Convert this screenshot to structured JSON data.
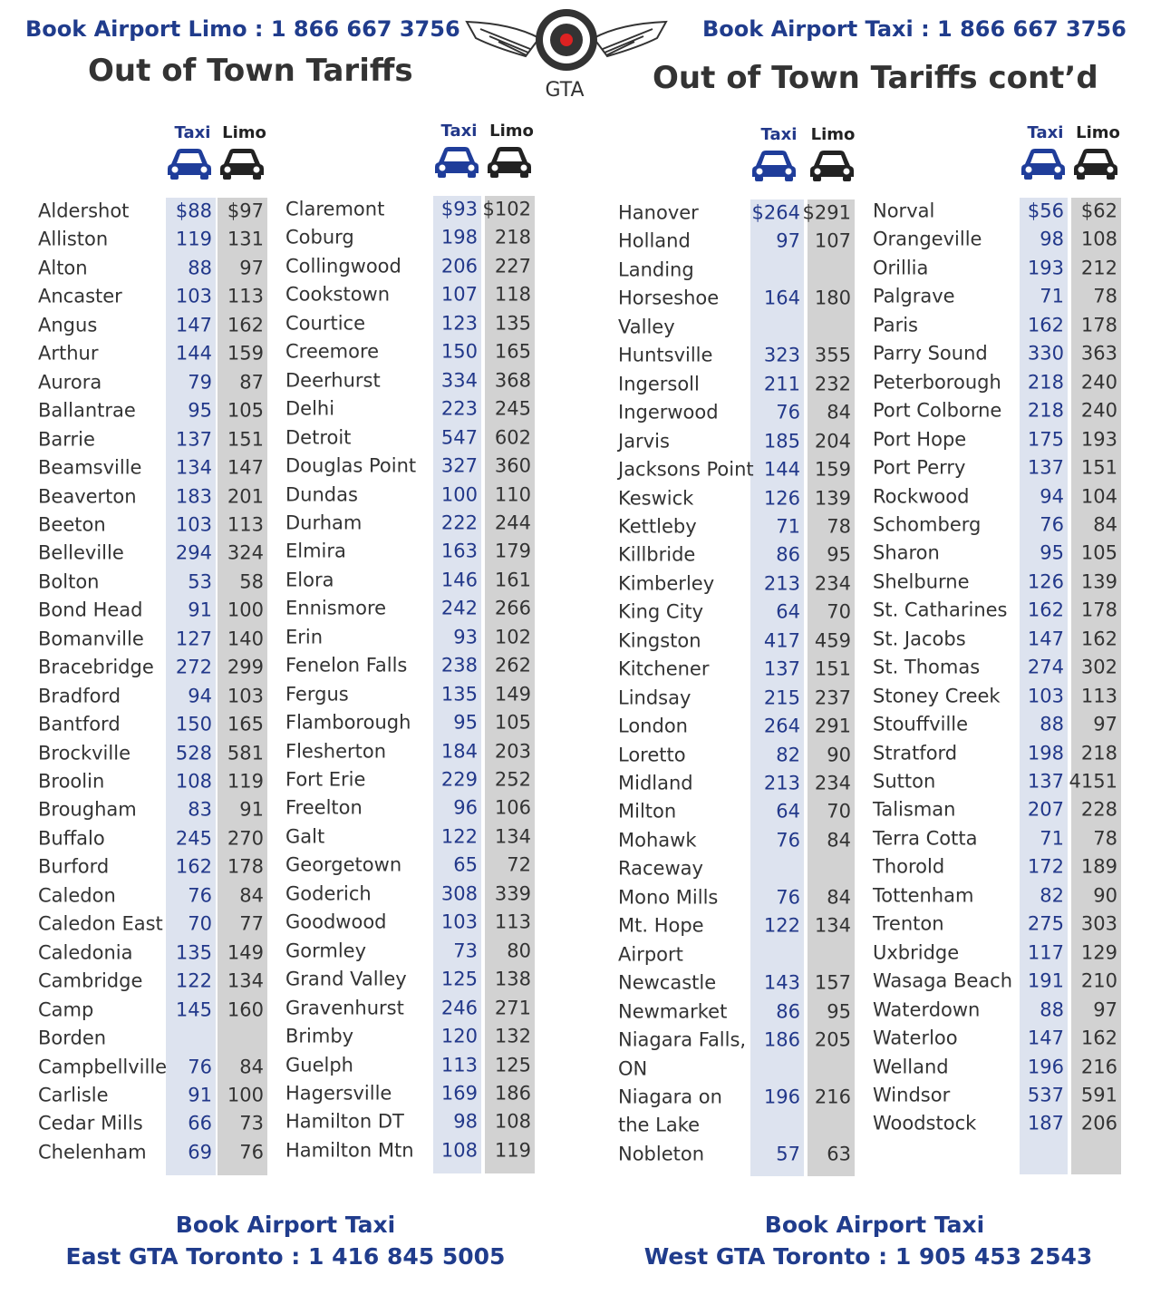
{
  "header": {
    "left_phone": "Book Airport Limo : 1 866 667 3756",
    "left_title": "Out of Town Tariffs",
    "logo": "GTA",
    "right_phone": "Book Airport Taxi : 1 866 667 3756",
    "right_title": "Out of Town Tariffs cont’d"
  },
  "columns": [
    {
      "taxi_header": "Taxi",
      "limo_header": "Limo",
      "rows": [
        [
          [
            "Aldershot"
          ],
          "$88",
          "$97"
        ],
        [
          [
            "Alliston"
          ],
          "119",
          "131"
        ],
        [
          [
            "Alton"
          ],
          "88",
          "97"
        ],
        [
          [
            "Ancaster"
          ],
          "103",
          "113"
        ],
        [
          [
            "Angus"
          ],
          "147",
          "162"
        ],
        [
          [
            "Arthur"
          ],
          "144",
          "159"
        ],
        [
          [
            "Aurora"
          ],
          "79",
          "87"
        ],
        [
          [
            "Ballantrae"
          ],
          "95",
          "105"
        ],
        [
          [
            "Barrie"
          ],
          "137",
          "151"
        ],
        [
          [
            "Beamsville"
          ],
          "134",
          "147"
        ],
        [
          [
            "Beaverton"
          ],
          "183",
          "201"
        ],
        [
          [
            "Beeton"
          ],
          "103",
          "113"
        ],
        [
          [
            "Belleville"
          ],
          "294",
          "324"
        ],
        [
          [
            "Bolton"
          ],
          "53",
          "58"
        ],
        [
          [
            "Bond Head"
          ],
          "91",
          "100"
        ],
        [
          [
            "Bomanville"
          ],
          "127",
          "140"
        ],
        [
          [
            "Bracebridge"
          ],
          "272",
          "299"
        ],
        [
          [
            "Bradford"
          ],
          "94",
          "103"
        ],
        [
          [
            "Bantford"
          ],
          "150",
          "165"
        ],
        [
          [
            "Brockville"
          ],
          "528",
          "581"
        ],
        [
          [
            "Broolin"
          ],
          "108",
          "119"
        ],
        [
          [
            "Brougham"
          ],
          "83",
          "91"
        ],
        [
          [
            "Buffalo"
          ],
          "245",
          "270"
        ],
        [
          [
            "Burford"
          ],
          "162",
          "178"
        ],
        [
          [
            "Caledon"
          ],
          "76",
          "84"
        ],
        [
          [
            "Caledon East"
          ],
          "70",
          "77"
        ],
        [
          [
            "Caledonia"
          ],
          "135",
          "149"
        ],
        [
          [
            "Cambridge"
          ],
          "122",
          "134"
        ],
        [
          [
            "Camp",
            "Borden"
          ],
          "145",
          "160"
        ],
        [
          [
            "Campbellville"
          ],
          "76",
          "84"
        ],
        [
          [
            "Carlisle"
          ],
          "91",
          "100"
        ],
        [
          [
            "Cedar Mills"
          ],
          "66",
          "73"
        ],
        [
          [
            "Chelenham"
          ],
          "69",
          "76"
        ]
      ]
    },
    {
      "taxi_header": "Taxi",
      "limo_header": "Limo",
      "rows": [
        [
          [
            "Claremont"
          ],
          "$93",
          "$102"
        ],
        [
          [
            "Coburg"
          ],
          "198",
          "218"
        ],
        [
          [
            "Collingwood"
          ],
          "206",
          "227"
        ],
        [
          [
            "Cookstown"
          ],
          "107",
          "118"
        ],
        [
          [
            "Courtice"
          ],
          "123",
          "135"
        ],
        [
          [
            "Creemore"
          ],
          "150",
          "165"
        ],
        [
          [
            "Deerhurst"
          ],
          "334",
          "368"
        ],
        [
          [
            "Delhi"
          ],
          "223",
          "245"
        ],
        [
          [
            "Detroit"
          ],
          "547",
          "602"
        ],
        [
          [
            "Douglas Point"
          ],
          "327",
          "360"
        ],
        [
          [
            "Dundas"
          ],
          "100",
          "110"
        ],
        [
          [
            "Durham"
          ],
          "222",
          "244"
        ],
        [
          [
            "Elmira"
          ],
          "163",
          "179"
        ],
        [
          [
            "Elora"
          ],
          "146",
          "161"
        ],
        [
          [
            "Ennismore"
          ],
          "242",
          "266"
        ],
        [
          [
            "Erin"
          ],
          "93",
          "102"
        ],
        [
          [
            "Fenelon Falls"
          ],
          "238",
          "262"
        ],
        [
          [
            "Fergus"
          ],
          "135",
          "149"
        ],
        [
          [
            "Flamborough"
          ],
          "95",
          "105"
        ],
        [
          [
            "Flesherton"
          ],
          "184",
          "203"
        ],
        [
          [
            "Fort Erie"
          ],
          "229",
          "252"
        ],
        [
          [
            "Freelton"
          ],
          "96",
          "106"
        ],
        [
          [
            "Galt"
          ],
          "122",
          "134"
        ],
        [
          [
            "Georgetown"
          ],
          "65",
          "72"
        ],
        [
          [
            "Goderich"
          ],
          "308",
          "339"
        ],
        [
          [
            "Goodwood"
          ],
          "103",
          "113"
        ],
        [
          [
            "Gormley"
          ],
          "73",
          "80"
        ],
        [
          [
            "Grand Valley"
          ],
          "125",
          "138"
        ],
        [
          [
            "Gravenhurst"
          ],
          "246",
          "271"
        ],
        [
          [
            "Brimby"
          ],
          "120",
          "132"
        ],
        [
          [
            "Guelph"
          ],
          "113",
          "125"
        ],
        [
          [
            "Hagersville"
          ],
          "169",
          "186"
        ],
        [
          [
            "Hamilton DT"
          ],
          "98",
          "108"
        ],
        [
          [
            "Hamilton Mtn"
          ],
          "108",
          "119"
        ]
      ]
    },
    {
      "taxi_header": "Taxi",
      "limo_header": "Limo",
      "rows": [
        [
          [
            "Hanover"
          ],
          "$264",
          "$291"
        ],
        [
          [
            "Holland",
            "Landing"
          ],
          "97",
          "107"
        ],
        [
          [
            "Horseshoe",
            "Valley"
          ],
          "164",
          "180"
        ],
        [
          [
            "Huntsville"
          ],
          "323",
          "355"
        ],
        [
          [
            "Ingersoll"
          ],
          "211",
          "232"
        ],
        [
          [
            "Ingerwood"
          ],
          "76",
          "84"
        ],
        [
          [
            "Jarvis"
          ],
          "185",
          "204"
        ],
        [
          [
            "Jacksons Point"
          ],
          "144",
          "159"
        ],
        [
          [
            "Keswick"
          ],
          "126",
          "139"
        ],
        [
          [
            "Kettleby"
          ],
          "71",
          "78"
        ],
        [
          [
            "Killbride"
          ],
          "86",
          "95"
        ],
        [
          [
            "Kimberley"
          ],
          "213",
          "234"
        ],
        [
          [
            "King City"
          ],
          "64",
          "70"
        ],
        [
          [
            "Kingston"
          ],
          "417",
          "459"
        ],
        [
          [
            "Kitchener"
          ],
          "137",
          "151"
        ],
        [
          [
            "Lindsay"
          ],
          "215",
          "237"
        ],
        [
          [
            "London"
          ],
          "264",
          "291"
        ],
        [
          [
            "Loretto"
          ],
          "82",
          "90"
        ],
        [
          [
            "Midland"
          ],
          "213",
          "234"
        ],
        [
          [
            "Milton"
          ],
          "64",
          "70"
        ],
        [
          [
            "Mohawk",
            "Raceway"
          ],
          "76",
          "84"
        ],
        [
          [
            "Mono Mills"
          ],
          "76",
          "84"
        ],
        [
          [
            "Mt. Hope",
            "Airport"
          ],
          "122",
          "134"
        ],
        [
          [
            "Newcastle"
          ],
          "143",
          "157"
        ],
        [
          [
            "Newmarket"
          ],
          "86",
          "95"
        ],
        [
          [
            "Niagara Falls,",
            "ON"
          ],
          "186",
          "205"
        ],
        [
          [
            "Niagara on",
            "the Lake"
          ],
          "196",
          "216"
        ],
        [
          [
            "Nobleton"
          ],
          "57",
          "63"
        ]
      ]
    },
    {
      "taxi_header": "Taxi",
      "limo_header": "Limo",
      "rows": [
        [
          [
            "Norval"
          ],
          "$56",
          "$62"
        ],
        [
          [
            "Orangeville"
          ],
          "98",
          "108"
        ],
        [
          [
            "Orillia"
          ],
          "193",
          "212"
        ],
        [
          [
            "Palgrave"
          ],
          "71",
          "78"
        ],
        [
          [
            "Paris"
          ],
          "162",
          "178"
        ],
        [
          [
            "Parry Sound"
          ],
          "330",
          "363"
        ],
        [
          [
            "Peterborough"
          ],
          "218",
          "240"
        ],
        [
          [
            "Port Colborne"
          ],
          "218",
          "240"
        ],
        [
          [
            "Port Hope"
          ],
          "175",
          "193"
        ],
        [
          [
            "Port Perry"
          ],
          "137",
          "151"
        ],
        [
          [
            "Rockwood"
          ],
          "94",
          "104"
        ],
        [
          [
            "Schomberg"
          ],
          "76",
          "84"
        ],
        [
          [
            "Sharon"
          ],
          "95",
          "105"
        ],
        [
          [
            "Shelburne"
          ],
          "126",
          "139"
        ],
        [
          [
            "St. Catharines"
          ],
          "162",
          "178"
        ],
        [
          [
            "St. Jacobs"
          ],
          "147",
          "162"
        ],
        [
          [
            "St. Thomas"
          ],
          "274",
          "302"
        ],
        [
          [
            "Stoney Creek"
          ],
          "103",
          "113"
        ],
        [
          [
            "Stouffville"
          ],
          "88",
          "97"
        ],
        [
          [
            "Stratford"
          ],
          "198",
          "218"
        ],
        [
          [
            "Sutton"
          ],
          "137",
          "4151"
        ],
        [
          [
            "Talisman"
          ],
          "207",
          "228"
        ],
        [
          [
            "Terra Cotta"
          ],
          "71",
          "78"
        ],
        [
          [
            "Thorold"
          ],
          "172",
          "189"
        ],
        [
          [
            "Tottenham"
          ],
          "82",
          "90"
        ],
        [
          [
            "Trenton"
          ],
          "275",
          "303"
        ],
        [
          [
            "Uxbridge"
          ],
          "117",
          "129"
        ],
        [
          [
            "Wasaga Beach"
          ],
          "191",
          "210"
        ],
        [
          [
            "Waterdown"
          ],
          "88",
          "97"
        ],
        [
          [
            "Waterloo"
          ],
          "147",
          "162"
        ],
        [
          [
            "Welland"
          ],
          "196",
          "216"
        ],
        [
          [
            "Windsor"
          ],
          "537",
          "591"
        ],
        [
          [
            "Woodstock"
          ],
          "187",
          "206"
        ]
      ]
    }
  ],
  "footer": {
    "left_line1": "Book Airport Taxi",
    "left_line2": "East GTA Toronto : 1 416 845 5005",
    "right_line1": "Book Airport Taxi",
    "right_line2": "West GTA Toronto : 1 905 453 2543"
  }
}
